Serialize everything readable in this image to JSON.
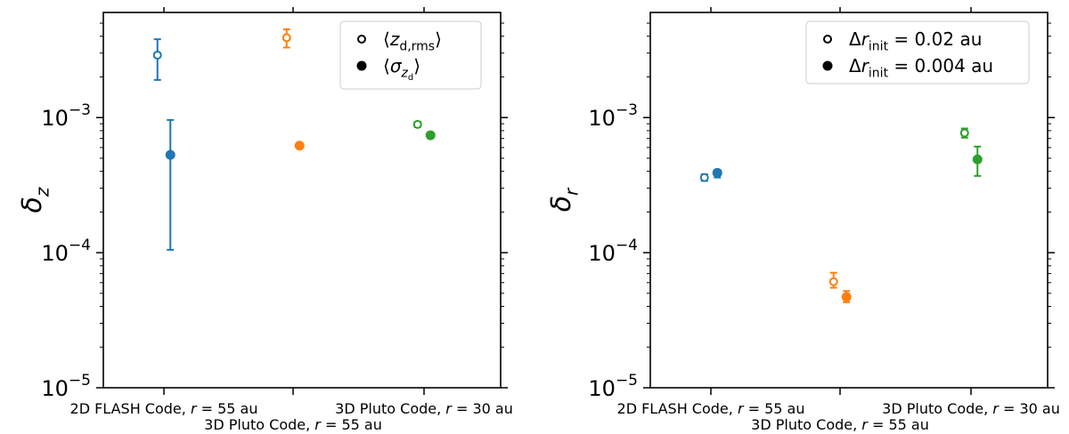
{
  "chart_data": [
    {
      "type": "scatter",
      "ylabel": "δ_z",
      "yscale": "log",
      "ylim": [
        1e-05,
        0.006
      ],
      "y_ticks": [
        {
          "value": 0.001,
          "mantissa": "10",
          "exponent": "−3"
        },
        {
          "value": 0.0001,
          "mantissa": "10",
          "exponent": "−4"
        },
        {
          "value": 1e-05,
          "mantissa": "10",
          "exponent": "−5"
        }
      ],
      "categories": [
        "2D FLASH Code, r = 55 au",
        "3D Pluto Code, r = 55 au",
        "3D Pluto Code, r = 30 au"
      ],
      "legend": {
        "position": "top-right",
        "entries": [
          {
            "marker": "open",
            "label": "⟨z_d,rms⟩"
          },
          {
            "marker": "filled",
            "label": "⟨σ_z_d⟩"
          }
        ]
      },
      "series": [
        {
          "marker": "open",
          "points": [
            {
              "category": 0,
              "offset": -0.05,
              "y": 0.0029,
              "ylo": 0.0019,
              "yhi": 0.0038,
              "color": "#1f77b4"
            },
            {
              "category": 1,
              "offset": -0.05,
              "y": 0.0039,
              "ylo": 0.0033,
              "yhi": 0.0045,
              "color": "#ff7f0e"
            },
            {
              "category": 2,
              "offset": -0.05,
              "y": 0.00089,
              "ylo": 0.00085,
              "yhi": 0.00093,
              "color": "#2ca02c"
            }
          ]
        },
        {
          "marker": "filled",
          "points": [
            {
              "category": 0,
              "offset": 0.05,
              "y": 0.00053,
              "ylo": 0.000105,
              "yhi": 0.00096,
              "color": "#1f77b4"
            },
            {
              "category": 1,
              "offset": 0.05,
              "y": 0.00062,
              "ylo": 0.00062,
              "yhi": 0.00062,
              "color": "#ff7f0e"
            },
            {
              "category": 2,
              "offset": 0.05,
              "y": 0.00074,
              "ylo": 0.00074,
              "yhi": 0.00074,
              "color": "#2ca02c"
            }
          ]
        }
      ]
    },
    {
      "type": "scatter",
      "ylabel": "δ_r",
      "yscale": "log",
      "ylim": [
        1e-05,
        0.006
      ],
      "y_ticks": [
        {
          "value": 0.001,
          "mantissa": "10",
          "exponent": "−3"
        },
        {
          "value": 0.0001,
          "mantissa": "10",
          "exponent": "−4"
        },
        {
          "value": 1e-05,
          "mantissa": "10",
          "exponent": "−5"
        }
      ],
      "categories": [
        "2D FLASH Code, r = 55 au",
        "3D Pluto Code, r = 55 au",
        "3D Pluto Code, r = 30 au"
      ],
      "legend": {
        "position": "top-right",
        "entries": [
          {
            "marker": "open",
            "label": "Δr_init = 0.02 au"
          },
          {
            "marker": "filled",
            "label": "Δr_init = 0.004 au"
          }
        ]
      },
      "series": [
        {
          "marker": "open",
          "points": [
            {
              "category": 0,
              "offset": -0.05,
              "y": 0.00036,
              "ylo": 0.00034,
              "yhi": 0.00038,
              "color": "#1f77b4"
            },
            {
              "category": 1,
              "offset": -0.05,
              "y": 6.1e-05,
              "ylo": 5.5e-05,
              "yhi": 7.1e-05,
              "color": "#ff7f0e"
            },
            {
              "category": 2,
              "offset": -0.05,
              "y": 0.00077,
              "ylo": 0.00071,
              "yhi": 0.00083,
              "color": "#2ca02c"
            }
          ]
        },
        {
          "marker": "filled",
          "points": [
            {
              "category": 0,
              "offset": 0.05,
              "y": 0.00039,
              "ylo": 0.00036,
              "yhi": 0.00041,
              "color": "#1f77b4"
            },
            {
              "category": 1,
              "offset": 0.05,
              "y": 4.7e-05,
              "ylo": 4.3e-05,
              "yhi": 5.2e-05,
              "color": "#ff7f0e"
            },
            {
              "category": 2,
              "offset": 0.05,
              "y": 0.00049,
              "ylo": 0.00037,
              "yhi": 0.00061,
              "color": "#2ca02c"
            }
          ]
        }
      ]
    }
  ]
}
